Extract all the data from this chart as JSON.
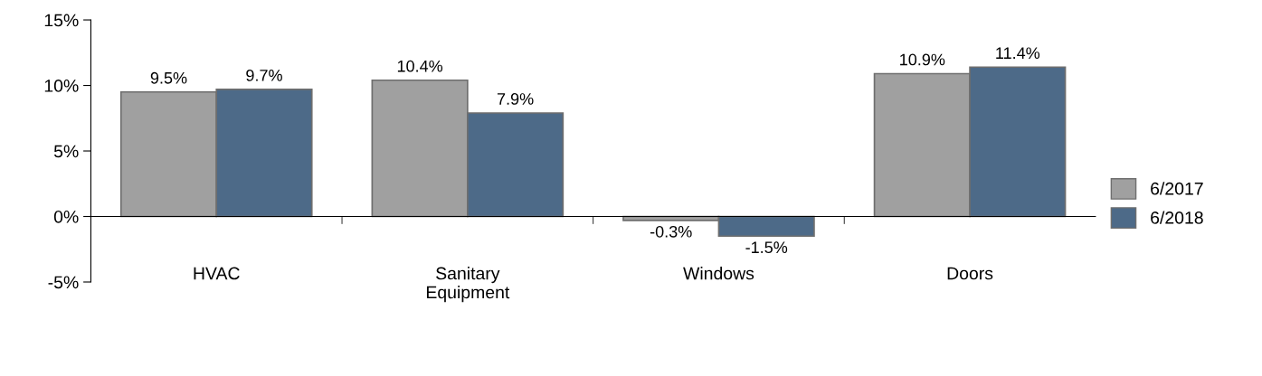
{
  "chart_data": {
    "type": "bar",
    "categories": [
      "HVAC",
      "Sanitary\nEquipment",
      "Windows",
      "Doors"
    ],
    "series": [
      {
        "name": "6/2017",
        "color": "#a0a0a0",
        "values": [
          9.5,
          10.4,
          -0.3,
          10.9
        ],
        "value_labels": [
          "9.5%",
          "10.4%",
          "-0.3%",
          "10.9%"
        ]
      },
      {
        "name": "6/2018",
        "color": "#4d6a88",
        "values": [
          9.7,
          7.9,
          -1.5,
          11.4
        ],
        "value_labels": [
          "9.7%",
          "7.9%",
          "-1.5%",
          "11.4%"
        ]
      }
    ],
    "ylim": [
      -5,
      15
    ],
    "yticks": [
      {
        "value": -5,
        "label": "-5%"
      },
      {
        "value": 0,
        "label": "0%"
      },
      {
        "value": 5,
        "label": "5%"
      },
      {
        "value": 10,
        "label": "10%"
      },
      {
        "value": 15,
        "label": "15%"
      }
    ],
    "legend": "right"
  }
}
